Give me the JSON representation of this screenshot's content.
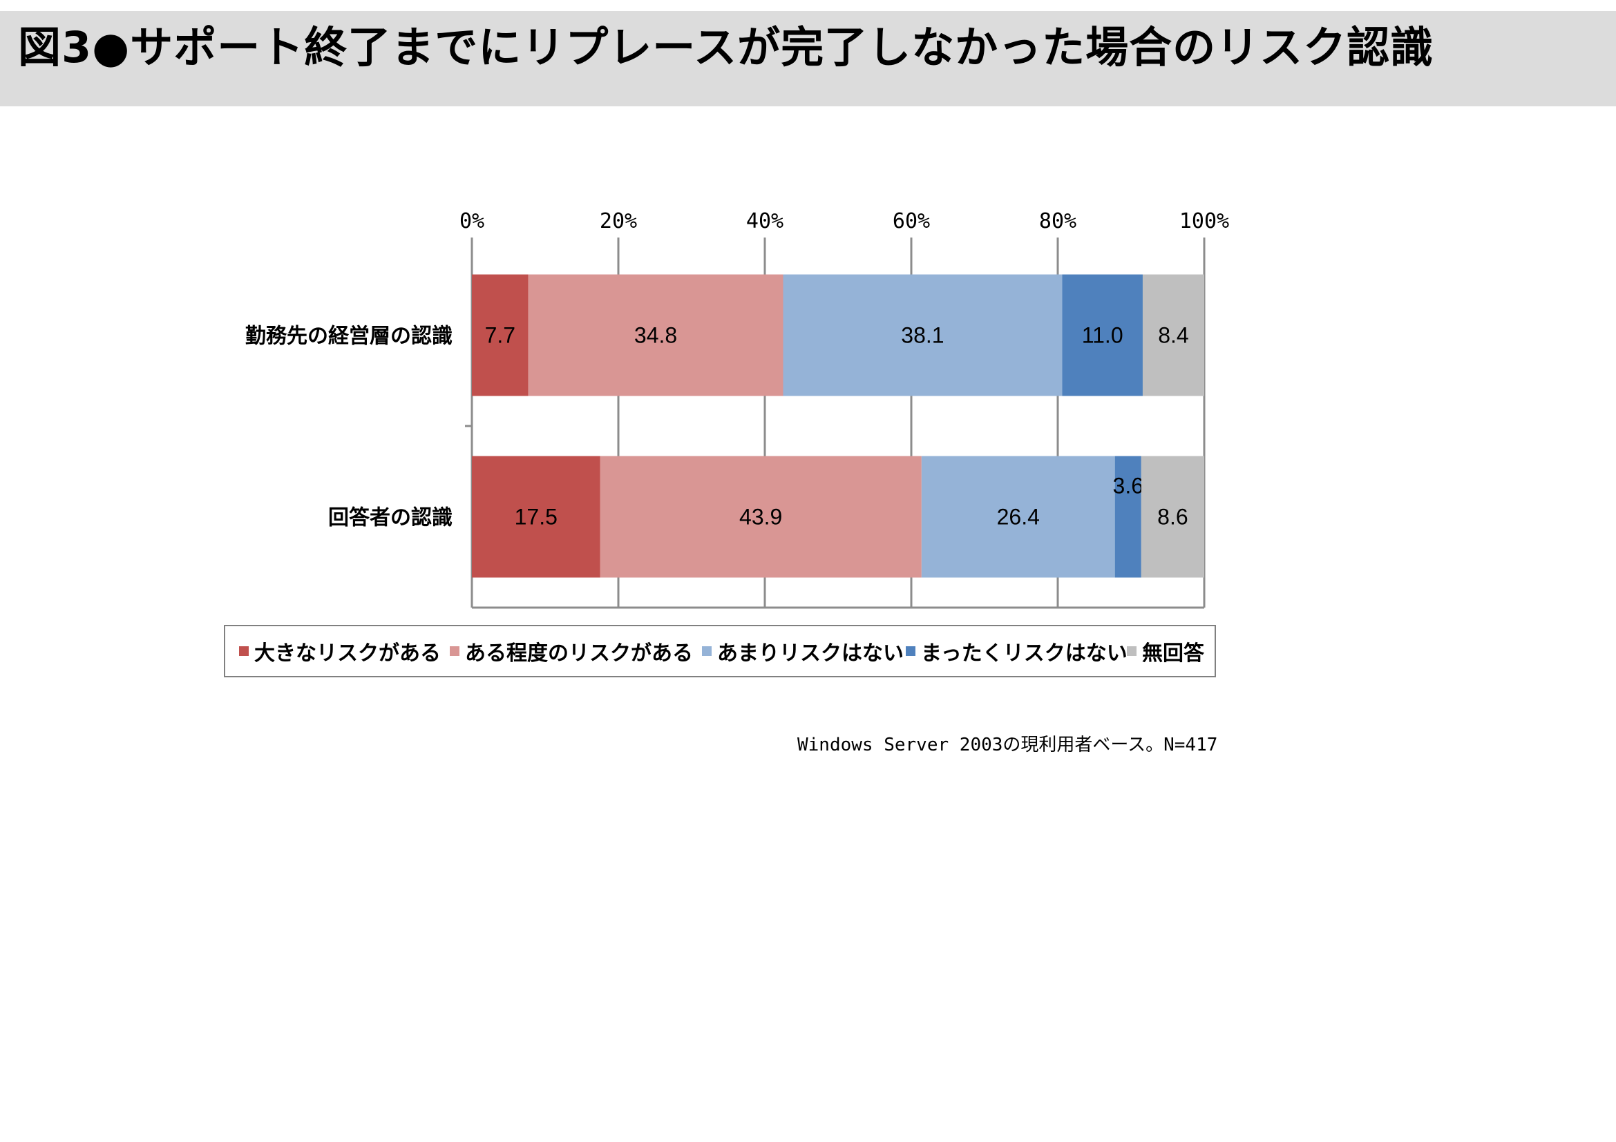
{
  "title": "図3●サポート終了までにリプレースが完了しなかった場合のリスク認識",
  "note": "Windows Server 2003の現利用者ベース。N=417",
  "chart_data": {
    "type": "bar",
    "orientation": "horizontal",
    "stacked": true,
    "xlim": [
      0,
      100
    ],
    "x_ticks": [
      "0%",
      "20%",
      "40%",
      "60%",
      "80%",
      "100%"
    ],
    "categories": [
      "勤務先の経営層の認識",
      "回答者の認識"
    ],
    "series": [
      {
        "name": "大きなリスクがある",
        "color": "#c0504d",
        "values": [
          7.7,
          17.5
        ],
        "labels": [
          "7.7",
          "17.5"
        ]
      },
      {
        "name": "ある程度のリスクがある",
        "color": "#d99694",
        "values": [
          34.8,
          43.9
        ],
        "labels": [
          "34.8",
          "43.9"
        ]
      },
      {
        "name": "あまりリスクはない",
        "color": "#95b3d7",
        "values": [
          38.1,
          26.4
        ],
        "labels": [
          "38.1",
          "26.4"
        ]
      },
      {
        "name": "まったくリスクはない",
        "color": "#4f81bd",
        "values": [
          11.0,
          3.6
        ],
        "labels": [
          "11.0",
          "3.6"
        ]
      },
      {
        "name": "無回答",
        "color": "#bfbfbf",
        "values": [
          8.4,
          8.6
        ],
        "labels": [
          "8.4",
          "8.6"
        ]
      }
    ],
    "legend_position": "bottom",
    "gridlines": true
  }
}
